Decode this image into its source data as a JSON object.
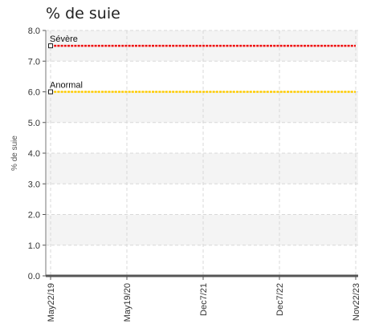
{
  "chart_data": {
    "type": "line",
    "title": "% de suie",
    "ylabel": "% de suie",
    "xlabel": "",
    "ylim": [
      0,
      8
    ],
    "yticks": [
      "0.0",
      "1.0",
      "2.0",
      "3.0",
      "4.0",
      "5.0",
      "6.0",
      "7.0",
      "8.0"
    ],
    "xticks": [
      "May22/19",
      "May19/20",
      "Dec7/21",
      "Dec7/22",
      "Nov22/23"
    ],
    "grid": true,
    "thresholds": [
      {
        "label": "Sévère",
        "value": 7.5,
        "color": "#ee1111"
      },
      {
        "label": "Anormal",
        "value": 6.0,
        "color": "#ffcc00"
      }
    ],
    "series": [
      {
        "values": [
          0,
          0,
          0,
          0,
          0
        ],
        "color": "#555555"
      }
    ]
  }
}
